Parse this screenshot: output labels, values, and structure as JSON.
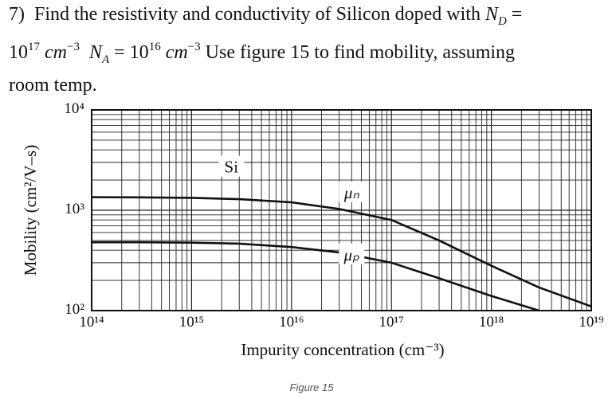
{
  "question": {
    "lines": [
      [
        {
          "text": "7)  Find the resistivity and conductivity of Silicon doped with "
        },
        {
          "text": "N",
          "style": "italic"
        },
        {
          "text": "D",
          "style": "sub"
        },
        {
          "text": " ="
        }
      ],
      [
        {
          "text": "10"
        },
        {
          "text": "17",
          "style": "sup"
        },
        {
          "text": " cm",
          "style": "italic"
        },
        {
          "text": "−3",
          "style": "sup"
        },
        {
          "text": "  N",
          "style": "italic"
        },
        {
          "text": "A",
          "style": "sub"
        },
        {
          "text": " = 10"
        },
        {
          "text": "16",
          "style": "sup"
        },
        {
          "text": " cm",
          "style": "italic"
        },
        {
          "text": "−3",
          "style": "sup"
        },
        {
          "text": " Use figure 15 to find mobility, assuming"
        }
      ],
      [
        {
          "text": "room temp."
        }
      ]
    ]
  },
  "chart_data": {
    "type": "line",
    "x_label": "Impurity concentration (cm⁻³)",
    "y_label": "Mobility (cm²/V–s)",
    "annotations": [
      {
        "text": "Si",
        "x": 2500000000000000.0,
        "y": 2700
      },
      {
        "text": "μₙ",
        "x": 4e+16,
        "y": 1500
      },
      {
        "text": "μₚ",
        "x": 4e+16,
        "y": 360
      }
    ],
    "x": [
      100000000000000.0,
      300000000000000.0,
      1000000000000000.0,
      3000000000000000.0,
      1e+16,
      3e+16,
      1e+17,
      3e+17,
      1e+18,
      3e+18,
      1e+19
    ],
    "series": [
      {
        "name": "μₙ",
        "color": "#111111",
        "values": [
          1350,
          1345,
          1330,
          1290,
          1200,
          1030,
          800,
          500,
          280,
          170,
          110
        ]
      },
      {
        "name": "μₚ",
        "color": "#111111",
        "values": [
          480,
          480,
          475,
          465,
          430,
          380,
          300,
          210,
          140,
          100,
          null
        ]
      }
    ],
    "xlim": [
      100000000000000.0,
      1e+19
    ],
    "ylim": [
      100,
      10000
    ],
    "log_x": true,
    "log_y": true,
    "grid": true,
    "minor_grid": true,
    "xticks": [
      {
        "value": 100000000000000.0,
        "label": "10¹⁴"
      },
      {
        "value": 1000000000000000.0,
        "label": "10¹⁵"
      },
      {
        "value": 1e+16,
        "label": "10¹⁶"
      },
      {
        "value": 1e+17,
        "label": "10¹⁷"
      },
      {
        "value": 1e+18,
        "label": "10¹⁸"
      },
      {
        "value": 1e+19,
        "label": "10¹⁹"
      }
    ],
    "yticks": [
      {
        "value": 100,
        "label": "10²"
      },
      {
        "value": 1000,
        "label": "10³"
      },
      {
        "value": 10000,
        "label": "10⁴"
      }
    ]
  },
  "caption": "Figure 15"
}
